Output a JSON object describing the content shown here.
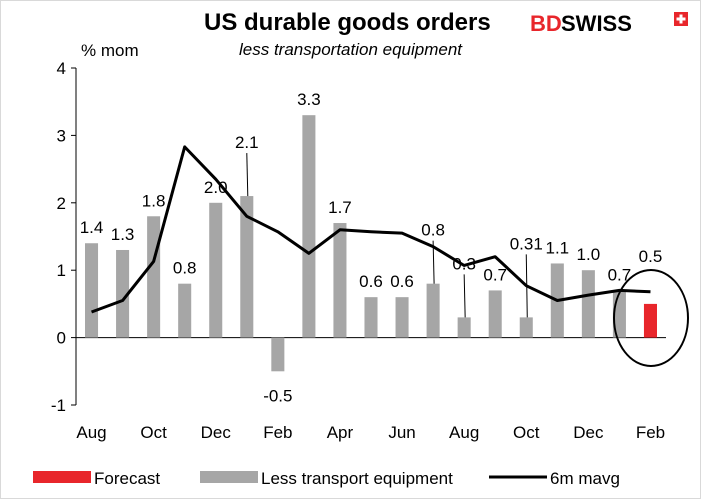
{
  "brand": {
    "name_bd": "BD",
    "name_swiss": "SWISS",
    "accent": "#e8262b"
  },
  "chart_data": {
    "type": "bar",
    "title": "US durable goods orders",
    "subtitle": "less transportation equipment",
    "ylabel": "% mom",
    "ylim": [
      -1,
      4
    ],
    "yticks": [
      -1,
      0,
      1,
      2,
      3,
      4
    ],
    "xtick_labels": [
      "Aug",
      "Oct",
      "Dec",
      "Feb",
      "Apr",
      "Jun",
      "Aug",
      "Oct",
      "Dec",
      "Feb"
    ],
    "periods": 19,
    "series": [
      {
        "name": "Less transport equipment",
        "color": "#a6a6a6",
        "values": [
          1.4,
          1.3,
          1.8,
          0.8,
          2.0,
          2.1,
          -0.5,
          3.3,
          1.7,
          0.6,
          0.6,
          0.8,
          0.3,
          0.7,
          0.3,
          1.1,
          1.0,
          0.7,
          null
        ],
        "labels": [
          "1.4",
          "1.3",
          "1.8",
          "0.8",
          "2.0",
          "2.1",
          "-0.5",
          "3.3",
          "1.7",
          "0.6",
          "0.6",
          "0.8",
          "0.3",
          "0.7",
          "0.31",
          "1.1",
          "1.0",
          "0.7",
          ""
        ]
      },
      {
        "name": "Forecast",
        "color": "#e8262b",
        "values": [
          null,
          null,
          null,
          null,
          null,
          null,
          null,
          null,
          null,
          null,
          null,
          null,
          null,
          null,
          null,
          null,
          null,
          null,
          0.5
        ],
        "labels": [
          "",
          "",
          "",
          "",
          "",
          "",
          "",
          "",
          "",
          "",
          "",
          "",
          "",
          "",
          "",
          "",
          "",
          "",
          "0.5"
        ]
      },
      {
        "name": "6m mavg",
        "type": "line",
        "color": "#000000",
        "values": [
          0.38,
          0.55,
          1.13,
          2.83,
          2.35,
          1.8,
          1.57,
          1.25,
          1.6,
          1.57,
          1.55,
          1.35,
          1.07,
          1.2,
          0.77,
          0.55,
          0.63,
          0.7,
          0.68
        ]
      }
    ],
    "legend": [
      "Forecast",
      "Less transport equipment",
      "6m mavg"
    ],
    "legend_position": "bottom"
  }
}
